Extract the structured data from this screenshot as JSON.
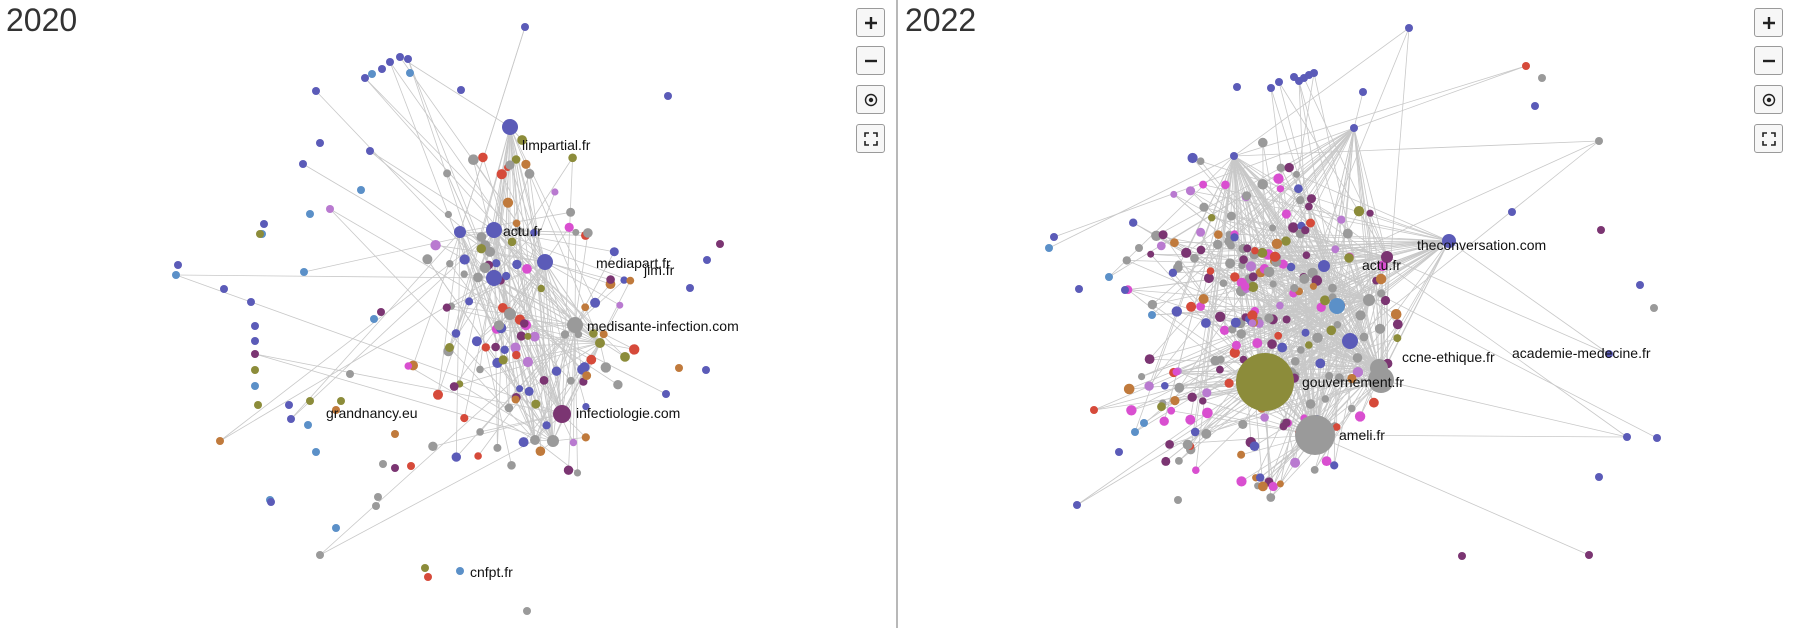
{
  "colors": {
    "edge": "#c8c8c8",
    "blue": "#5b5bb8",
    "lightblue": "#5b90c8",
    "magenta": "#d94fd0",
    "violet": "#b97ad0",
    "purple": "#7b3572",
    "grey": "#9a9a9a",
    "olive": "#8c8c3a",
    "orange": "#c07a3c",
    "red": "#d64a3a"
  },
  "panels": [
    {
      "title": "2020",
      "controls": [
        {
          "name": "zoom-in",
          "icon": "plus-icon"
        },
        {
          "name": "zoom-out",
          "icon": "minus-icon"
        },
        {
          "name": "center",
          "icon": "target-icon"
        },
        {
          "name": "fullscreen",
          "icon": "fullscreen-icon"
        }
      ],
      "labels": [
        {
          "text": "limpartial.fr"
        },
        {
          "text": "actu.fr"
        },
        {
          "text": "mediapart.fr"
        },
        {
          "text": "jim.fr"
        },
        {
          "text": "medisante-infection.com"
        },
        {
          "text": "infectiologie.com"
        },
        {
          "text": "grandnancy.eu"
        },
        {
          "text": "cnfpt.fr"
        }
      ]
    },
    {
      "title": "2022",
      "controls": [
        {
          "name": "zoom-in",
          "icon": "plus-icon"
        },
        {
          "name": "zoom-out",
          "icon": "minus-icon"
        },
        {
          "name": "center",
          "icon": "target-icon"
        },
        {
          "name": "fullscreen",
          "icon": "fullscreen-icon"
        }
      ],
      "labels": [
        {
          "text": "theconversation.com"
        },
        {
          "text": "actu.fr"
        },
        {
          "text": "academie-medecine.fr"
        },
        {
          "text": "ccne-ethique.fr"
        },
        {
          "text": "gouvernement.fr"
        },
        {
          "text": "ameli.fr"
        }
      ]
    }
  ]
}
